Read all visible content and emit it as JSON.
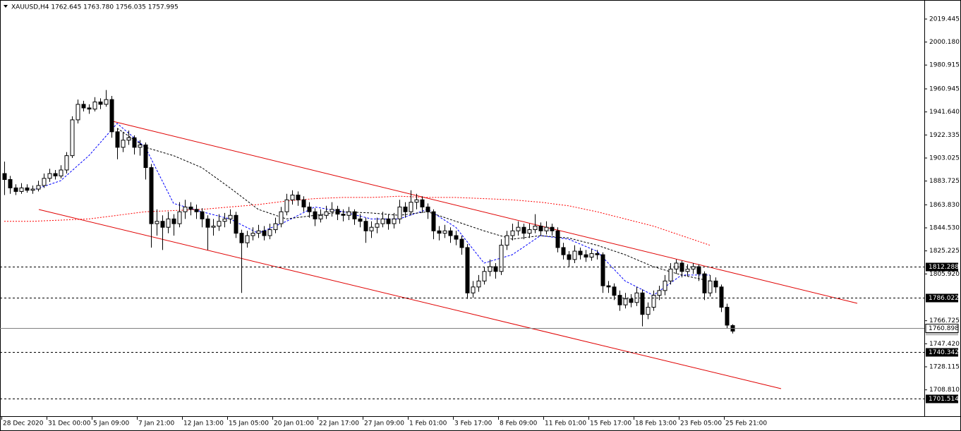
{
  "chart_data": {
    "type": "candlestick",
    "title": "XAUUSD,H4  1762.645 1763.780 1756.035 1757.995",
    "ylim": [
      1686.74,
      2035.4
    ],
    "yticks": [
      2019.445,
      {
        "value": 2000.18,
        "label": "2000.180"
      },
      1980.915,
      1960.945,
      {
        "value": 1941.64,
        "label": "1941.640"
      },
      1922.335,
      1903.025,
      1883.725,
      {
        "value": 1863.83,
        "label": "1863.830"
      },
      {
        "value": 1844.53,
        "label": "1844.530"
      },
      1825.225,
      {
        "value": 1805.92,
        "label": "1805.920"
      },
      1766.725,
      {
        "value": 1747.42,
        "label": "1747.420"
      },
      1728.115,
      {
        "value": 1708.81,
        "label": "1708.810"
      }
    ],
    "time_labels": [
      "28 Dec 2020",
      "31 Dec 00:00",
      "5 Jan 09:00",
      "7 Jan 21:00",
      "12 Jan 13:00",
      "15 Jan 05:00",
      "20 Jan 01:00",
      "22 Jan 17:00",
      "27 Jan 09:00",
      "1 Feb 01:00",
      "3 Feb 17:00",
      "8 Feb 09:00",
      "11 Feb 01:00",
      "15 Feb 17:00",
      "18 Feb 13:00",
      "23 Feb 05:00",
      "25 Feb 21:00"
    ],
    "levels": [
      1812.288,
      1786.022,
      1740.342,
      1701.514
    ],
    "bid": 1760.898,
    "last": 1757.995,
    "ohlc": [
      [
        1890,
        1900,
        1872,
        1885
      ],
      [
        1885,
        1888,
        1873,
        1878
      ],
      [
        1878,
        1881,
        1872,
        1875
      ],
      [
        1875,
        1882,
        1873,
        1878
      ],
      [
        1878,
        1881,
        1874,
        1876
      ],
      [
        1876,
        1880,
        1873,
        1877
      ],
      [
        1877,
        1884,
        1875,
        1880
      ],
      [
        1880,
        1890,
        1878,
        1886
      ],
      [
        1886,
        1894,
        1883,
        1890
      ],
      [
        1890,
        1893,
        1885,
        1888
      ],
      [
        1888,
        1897,
        1886,
        1893
      ],
      [
        1893,
        1908,
        1890,
        1905
      ],
      [
        1905,
        1938,
        1903,
        1935
      ],
      [
        1935,
        1952,
        1932,
        1948
      ],
      [
        1948,
        1951,
        1942,
        1945
      ],
      [
        1945,
        1948,
        1940,
        1944
      ],
      [
        1944,
        1954,
        1942,
        1950
      ],
      [
        1950,
        1953,
        1944,
        1948
      ],
      [
        1948,
        1960,
        1946,
        1952
      ],
      [
        1952,
        1955,
        1920,
        1925
      ],
      [
        1925,
        1928,
        1902,
        1912
      ],
      [
        1912,
        1925,
        1908,
        1918
      ],
      [
        1918,
        1926,
        1914,
        1920
      ],
      [
        1920,
        1922,
        1906,
        1912
      ],
      [
        1912,
        1918,
        1905,
        1914
      ],
      [
        1914,
        1916,
        1885,
        1895
      ],
      [
        1895,
        1898,
        1828,
        1848
      ],
      [
        1848,
        1860,
        1838,
        1850
      ],
      [
        1850,
        1855,
        1826,
        1845
      ],
      [
        1845,
        1858,
        1840,
        1852
      ],
      [
        1852,
        1856,
        1838,
        1848
      ],
      [
        1848,
        1866,
        1845,
        1858
      ],
      [
        1858,
        1868,
        1852,
        1862
      ],
      [
        1862,
        1866,
        1855,
        1860
      ],
      [
        1860,
        1864,
        1852,
        1858
      ],
      [
        1858,
        1861,
        1845,
        1852
      ],
      [
        1852,
        1855,
        1826,
        1845
      ],
      [
        1845,
        1852,
        1838,
        1846
      ],
      [
        1846,
        1856,
        1842,
        1850
      ],
      [
        1850,
        1857,
        1845,
        1852
      ],
      [
        1852,
        1860,
        1848,
        1855
      ],
      [
        1855,
        1858,
        1836,
        1840
      ],
      [
        1840,
        1843,
        1790,
        1832
      ],
      [
        1832,
        1842,
        1828,
        1838
      ],
      [
        1838,
        1845,
        1834,
        1840
      ],
      [
        1840,
        1847,
        1836,
        1842
      ],
      [
        1842,
        1846,
        1834,
        1838
      ],
      [
        1838,
        1848,
        1835,
        1843
      ],
      [
        1843,
        1853,
        1840,
        1848
      ],
      [
        1848,
        1862,
        1845,
        1858
      ],
      [
        1858,
        1873,
        1855,
        1868
      ],
      [
        1868,
        1876,
        1864,
        1872
      ],
      [
        1872,
        1875,
        1863,
        1868
      ],
      [
        1868,
        1871,
        1858,
        1862
      ],
      [
        1862,
        1866,
        1853,
        1858
      ],
      [
        1858,
        1861,
        1846,
        1852
      ],
      [
        1852,
        1860,
        1849,
        1855
      ],
      [
        1855,
        1863,
        1852,
        1858
      ],
      [
        1858,
        1866,
        1854,
        1860
      ],
      [
        1860,
        1863,
        1851,
        1856
      ],
      [
        1856,
        1860,
        1850,
        1855
      ],
      [
        1855,
        1862,
        1851,
        1858
      ],
      [
        1858,
        1860,
        1847,
        1852
      ],
      [
        1852,
        1856,
        1845,
        1850
      ],
      [
        1850,
        1853,
        1832,
        1842
      ],
      [
        1842,
        1850,
        1836,
        1845
      ],
      [
        1845,
        1853,
        1840,
        1848
      ],
      [
        1848,
        1858,
        1845,
        1852
      ],
      [
        1852,
        1856,
        1843,
        1848
      ],
      [
        1848,
        1857,
        1844,
        1852
      ],
      [
        1852,
        1868,
        1848,
        1862
      ],
      [
        1862,
        1866,
        1853,
        1858
      ],
      [
        1858,
        1876,
        1855,
        1866
      ],
      [
        1866,
        1873,
        1860,
        1868
      ],
      [
        1868,
        1871,
        1857,
        1862
      ],
      [
        1862,
        1865,
        1852,
        1858
      ],
      [
        1858,
        1860,
        1835,
        1842
      ],
      [
        1842,
        1846,
        1834,
        1840
      ],
      [
        1840,
        1847,
        1836,
        1842
      ],
      [
        1842,
        1845,
        1832,
        1838
      ],
      [
        1838,
        1842,
        1830,
        1835
      ],
      [
        1835,
        1838,
        1822,
        1828
      ],
      [
        1828,
        1831,
        1785,
        1790
      ],
      [
        1790,
        1800,
        1786,
        1795
      ],
      [
        1795,
        1805,
        1791,
        1800
      ],
      [
        1800,
        1812,
        1797,
        1808
      ],
      [
        1808,
        1818,
        1804,
        1812
      ],
      [
        1812,
        1815,
        1802,
        1808
      ],
      [
        1808,
        1835,
        1805,
        1830
      ],
      [
        1830,
        1842,
        1826,
        1838
      ],
      [
        1838,
        1848,
        1834,
        1842
      ],
      [
        1842,
        1850,
        1838,
        1845
      ],
      [
        1845,
        1848,
        1835,
        1840
      ],
      [
        1840,
        1848,
        1836,
        1843
      ],
      [
        1843,
        1856,
        1840,
        1846
      ],
      [
        1846,
        1849,
        1838,
        1842
      ],
      [
        1842,
        1850,
        1839,
        1845
      ],
      [
        1845,
        1848,
        1838,
        1842
      ],
      [
        1842,
        1845,
        1824,
        1828
      ],
      [
        1828,
        1832,
        1818,
        1822
      ],
      [
        1822,
        1825,
        1812,
        1818
      ],
      [
        1818,
        1830,
        1815,
        1825
      ],
      [
        1825,
        1828,
        1818,
        1822
      ],
      [
        1822,
        1826,
        1816,
        1820
      ],
      [
        1820,
        1827,
        1817,
        1823
      ],
      [
        1823,
        1826,
        1818,
        1822
      ],
      [
        1822,
        1824,
        1790,
        1796
      ],
      [
        1796,
        1800,
        1790,
        1795
      ],
      [
        1795,
        1798,
        1784,
        1788
      ],
      [
        1788,
        1792,
        1775,
        1780
      ],
      [
        1780,
        1790,
        1777,
        1785
      ],
      [
        1785,
        1789,
        1778,
        1782
      ],
      [
        1782,
        1795,
        1779,
        1790
      ],
      [
        1790,
        1793,
        1762,
        1772
      ],
      [
        1772,
        1782,
        1768,
        1778
      ],
      [
        1778,
        1792,
        1775,
        1788
      ],
      [
        1788,
        1796,
        1784,
        1792
      ],
      [
        1792,
        1805,
        1788,
        1800
      ],
      [
        1800,
        1815,
        1797,
        1810
      ],
      [
        1810,
        1818,
        1806,
        1815
      ],
      [
        1815,
        1817,
        1803,
        1808
      ],
      [
        1808,
        1814,
        1804,
        1810
      ],
      [
        1810,
        1815,
        1806,
        1812
      ],
      [
        1812,
        1814,
        1800,
        1806
      ],
      [
        1806,
        1808,
        1784,
        1790
      ],
      [
        1790,
        1805,
        1787,
        1800
      ],
      [
        1800,
        1803,
        1790,
        1795
      ],
      [
        1795,
        1797,
        1774,
        1778
      ],
      [
        1778,
        1781,
        1760,
        1763
      ],
      [
        1762.645,
        1763.78,
        1756.035,
        1757.995
      ]
    ],
    "series": [
      {
        "name": "MA fast",
        "color": "#0000ff",
        "values": [
          null,
          1876,
          1884,
          1905,
          1932,
          1912,
          1865,
          1858,
          1852,
          1840,
          1850,
          1862,
          1858,
          1852,
          1852,
          1860,
          1845,
          1815,
          1822,
          1838,
          1835,
          1825,
          1800,
          1788,
          1805,
          1805
        ]
      },
      {
        "name": "MA medium",
        "color": "#000000",
        "values": [
          null,
          null,
          null,
          null,
          1928,
          1912,
          1905,
          1895,
          1878,
          1860,
          1852,
          1855,
          1858,
          1857,
          1855,
          1858,
          1850,
          1842,
          1835,
          1838,
          1836,
          1830,
          1822,
          1812,
          1805,
          1800
        ]
      },
      {
        "name": "MA slow",
        "color": "#ff0000",
        "values": [
          1850,
          1850,
          1851,
          1852,
          1855,
          1858,
          1859,
          1860,
          1862,
          1864,
          1867,
          1869,
          1870,
          1870,
          1871,
          1870,
          1870,
          1869,
          1868,
          1866,
          1863,
          1858,
          1852,
          1846,
          1838,
          1830
        ]
      }
    ]
  }
}
